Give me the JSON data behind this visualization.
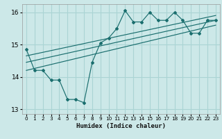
{
  "xlabel": "Humidex (Indice chaleur)",
  "ylabel": "",
  "background_color": "#cce8e8",
  "grid_color": "#aad4d4",
  "line_color": "#1a6e6e",
  "xlim": [
    -0.5,
    23.5
  ],
  "ylim": [
    12.85,
    16.25
  ],
  "yticks": [
    13,
    14,
    15,
    16
  ],
  "xticks": [
    0,
    1,
    2,
    3,
    4,
    5,
    6,
    7,
    8,
    9,
    10,
    11,
    12,
    13,
    14,
    15,
    16,
    17,
    18,
    19,
    20,
    21,
    22,
    23
  ],
  "line1": {
    "x": [
      0,
      1,
      2,
      3,
      4,
      5,
      6,
      7,
      8,
      9,
      10,
      11,
      12,
      13,
      14,
      15,
      16,
      17,
      18,
      19,
      20,
      21,
      22,
      23
    ],
    "y": [
      14.85,
      14.2,
      14.2,
      13.9,
      13.9,
      13.3,
      13.3,
      13.2,
      14.45,
      15.05,
      15.2,
      15.5,
      16.05,
      15.7,
      15.7,
      16.0,
      15.75,
      15.75,
      16.0,
      15.75,
      15.35,
      15.35,
      15.75,
      15.75
    ]
  },
  "line2_x": [
    0,
    23
  ],
  "line2_y": [
    14.2,
    15.6
  ],
  "line3_x": [
    0,
    23
  ],
  "line3_y": [
    14.45,
    15.75
  ],
  "line4_x": [
    0,
    23
  ],
  "line4_y": [
    14.65,
    15.9
  ]
}
